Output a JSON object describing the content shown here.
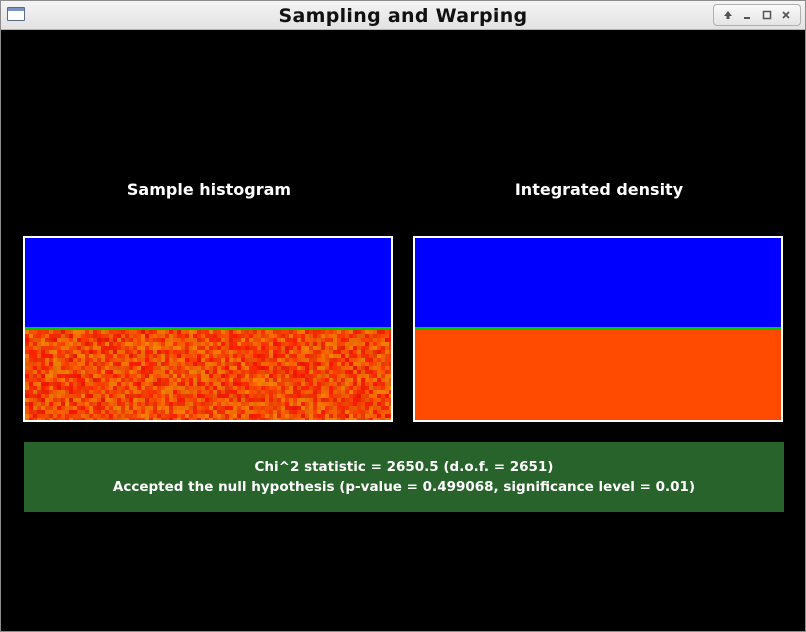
{
  "window": {
    "title": "Sampling and Warping",
    "app_icon": "window-icon",
    "controls": [
      "shade-icon",
      "minimize-icon",
      "maximize-icon",
      "close-icon"
    ]
  },
  "panels": {
    "left": {
      "title": "Sample histogram",
      "colors": {
        "empty": "#0000ff",
        "separator": "#00c800",
        "fill_base": "#ff4a00"
      },
      "noise": true
    },
    "right": {
      "title": "Integrated density",
      "colors": {
        "empty": "#0000ff",
        "separator": "#00c800",
        "fill_base": "#ff4a00"
      },
      "noise": false
    }
  },
  "stats": {
    "line1": "Chi^2 statistic = 2650.5 (d.o.f. = 2651)",
    "line2": "Accepted the null hypothesis (p-value = 0.499068, significance level = 0.01)",
    "background": "#28632b"
  }
}
